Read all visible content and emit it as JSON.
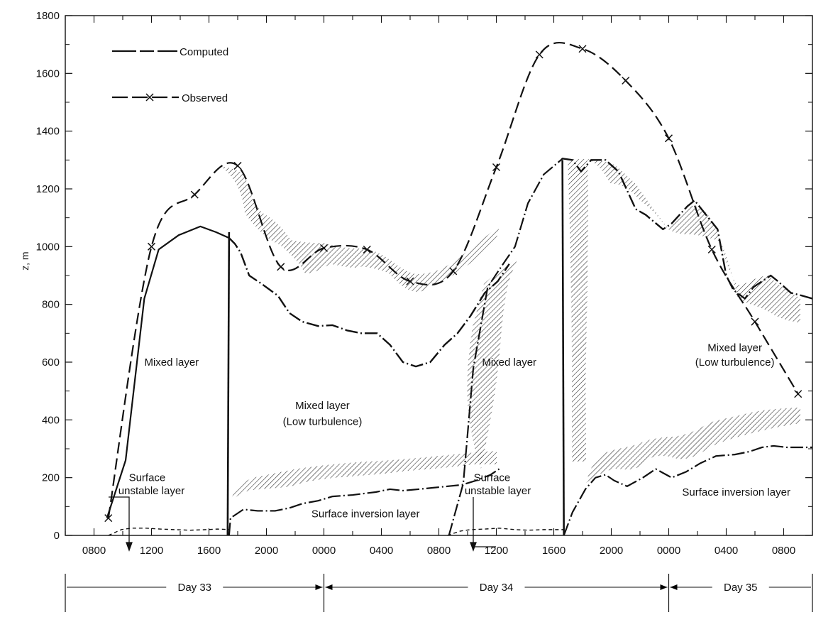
{
  "chart_data": {
    "type": "line",
    "title": "",
    "xlabel": "",
    "ylabel": "z, m",
    "x_unit": "hours since 0000 of Day 33",
    "xlim": [
      6.0,
      58.0
    ],
    "ylim": [
      0,
      1800
    ],
    "grid": false,
    "legend_position": "top-left",
    "y_ticks": [
      0,
      200,
      400,
      600,
      800,
      1000,
      1200,
      1400,
      1600,
      1800
    ],
    "x_ticks": [
      {
        "x": 8,
        "label": "0800"
      },
      {
        "x": 12,
        "label": "1200"
      },
      {
        "x": 16,
        "label": "1600"
      },
      {
        "x": 20,
        "label": "2000"
      },
      {
        "x": 24,
        "label": "0000"
      },
      {
        "x": 28,
        "label": "0400"
      },
      {
        "x": 32,
        "label": "0800"
      },
      {
        "x": 36,
        "label": "1200"
      },
      {
        "x": 40,
        "label": "1600"
      },
      {
        "x": 44,
        "label": "2000"
      },
      {
        "x": 48,
        "label": "0000"
      },
      {
        "x": 52,
        "label": "0400"
      },
      {
        "x": 56,
        "label": "0800"
      }
    ],
    "days": [
      {
        "label": "Day 33",
        "start": 6.0,
        "end": 24.0
      },
      {
        "label": "Day 34",
        "start": 24.0,
        "end": 48.0
      },
      {
        "label": "Day 35",
        "start": 48.0,
        "end": 58.0
      }
    ],
    "legend": [
      {
        "label": "Computed",
        "style": "solid-dash"
      },
      {
        "label": "Observed",
        "style": "dash-x"
      }
    ],
    "series": [
      {
        "name": "Observed",
        "x": [
          9,
          12,
          15,
          18,
          21,
          24,
          27,
          30,
          33,
          36,
          39,
          42,
          45,
          48,
          51,
          54,
          57
        ],
        "y": [
          60,
          1000,
          1180,
          1280,
          930,
          995,
          990,
          880,
          915,
          1275,
          1665,
          1685,
          1575,
          1375,
          990,
          740,
          490
        ]
      },
      {
        "name": "Computed",
        "segments": [
          {
            "x": [
              8.9,
              10.2,
              11.5,
              12.5,
              13.9,
              15.4,
              16.5,
              17.4
            ],
            "y": [
              60,
              260,
              820,
              990,
              1040,
              1070,
              1050,
              1030
            ]
          },
          {
            "x": [
              17.4,
              17.8,
              18.2,
              18.8,
              19.7,
              20.8,
              21.6,
              22.5,
              23.6,
              24.6,
              25.6,
              26.6,
              27.7,
              28.6,
              29.5,
              30.4,
              31.4,
              32.4,
              33.3,
              34.2,
              35.2,
              36.1,
              36.9
            ],
            "y": [
              1030,
              1010,
              980,
              900,
              870,
              830,
              770,
              740,
              725,
              728,
              710,
              700,
              700,
              660,
              600,
              585,
              600,
              660,
              700,
              760,
              840,
              880,
              940
            ]
          },
          {
            "x": [
              32.7,
              33.7,
              34.4,
              35.4,
              36.2,
              37.3,
              38.2,
              39.3,
              40.5
            ],
            "y": [
              0,
              180,
              580,
              860,
              920,
              1000,
              1150,
              1250,
              1300
            ]
          },
          {
            "x": [
              40.5,
              40.6,
              41.3,
              41.9,
              42.6,
              43.6,
              44.5,
              45.7,
              46.4,
              47.6,
              48.2,
              49.3,
              49.8,
              50.6,
              51.4,
              52.0,
              52.5,
              53.3,
              53.9,
              55.1,
              55.6,
              56.5,
              57.3,
              58.0
            ],
            "y": [
              1300,
              1305,
              1300,
              1260,
              1300,
              1300,
              1260,
              1130,
              1110,
              1060,
              1080,
              1140,
              1160,
              1110,
              1060,
              900,
              850,
              820,
              860,
              900,
              880,
              840,
              830,
              820
            ]
          },
          {
            "x": [
              17.4,
              17.5,
              18.4,
              19.4,
              20.6,
              21.6,
              22.5,
              23.6,
              24.6,
              26.0,
              27.6,
              28.6,
              29.5,
              30.6,
              31.6,
              32.6,
              33.6,
              34.6,
              35.6,
              36.2
            ],
            "y": [
              0,
              60,
              90,
              85,
              85,
              95,
              110,
              120,
              135,
              140,
              150,
              160,
              155,
              160,
              165,
              170,
              175,
              190,
              210,
              230
            ]
          },
          {
            "x": [
              40.7,
              41.3,
              42.2,
              42.9,
              43.6,
              44.2,
              45.1,
              46.2,
              47.1,
              48.2,
              49.2,
              50.2,
              51.3,
              52.6,
              53.6,
              54.5,
              55.3,
              56.2,
              57.2,
              58.0
            ],
            "y": [
              0,
              80,
              160,
              200,
              210,
              190,
              170,
              200,
              230,
              200,
              220,
              250,
              275,
              280,
              290,
              305,
              310,
              305,
              305,
              305
            ]
          },
          {
            "x": [
              9.0,
              9.9,
              10.6,
              11.6,
              12.6,
              13.6,
              14.7,
              15.8,
              16.6,
              17.4
            ],
            "y": [
              0,
              20,
              25,
              25,
              22,
              20,
              18,
              20,
              22,
              20
            ]
          },
          {
            "x": [
              32.6,
              33.5,
              34.2,
              35.2,
              36.2,
              37.3,
              38.2,
              39.3,
              40.2,
              40.7
            ],
            "y": [
              0,
              15,
              20,
              22,
              25,
              20,
              18,
              20,
              20,
              20
            ]
          }
        ]
      }
    ],
    "annotations": [
      {
        "text": "Mixed layer",
        "x": 13.4,
        "y": 600
      },
      {
        "text": "Mixed layer",
        "x": 23.9,
        "y": 450
      },
      {
        "text": "(Low turbulence)",
        "x": 23.9,
        "y": 395
      },
      {
        "text": "Surface",
        "x": 11.7,
        "y": 200
      },
      {
        "text": "unstable layer",
        "x": 12.0,
        "y": 155
      },
      {
        "text": "Surface inversion layer",
        "x": 26.9,
        "y": 75
      },
      {
        "text": "Mixed layer",
        "x": 36.9,
        "y": 600
      },
      {
        "text": "Surface",
        "x": 35.7,
        "y": 200
      },
      {
        "text": "unstable layer",
        "x": 36.1,
        "y": 155
      },
      {
        "text": "Mixed layer",
        "x": 52.6,
        "y": 650
      },
      {
        "text": "(Low turbulence)",
        "x": 52.6,
        "y": 600
      },
      {
        "text": "Surface inversion layer",
        "x": 52.7,
        "y": 150
      }
    ]
  }
}
